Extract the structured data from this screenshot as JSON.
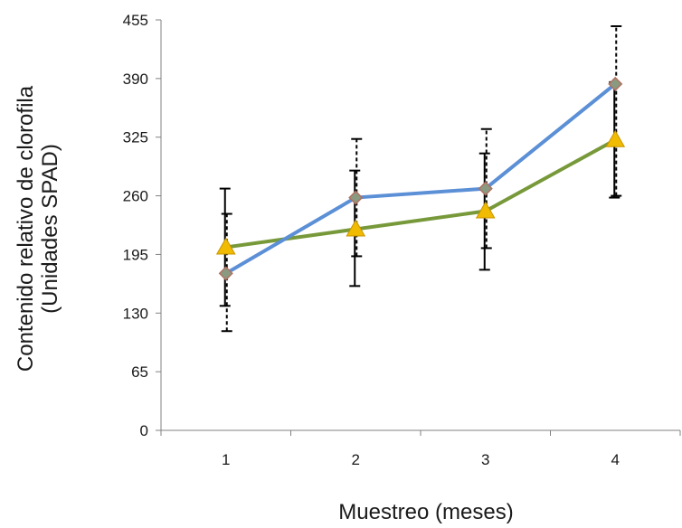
{
  "chart_data": {
    "type": "line",
    "title": "",
    "xlabel": "Muestreo (meses)",
    "ylabel": [
      "Contenido relativo de clorofila",
      "(Unidades SPAD)"
    ],
    "categories": [
      "1",
      "2",
      "3",
      "4"
    ],
    "ylim": [
      0,
      455
    ],
    "yticks": [
      0,
      65,
      130,
      195,
      260,
      325,
      390,
      455
    ],
    "grid": false,
    "legend": "none",
    "series": [
      {
        "color": "#5b8fd6",
        "marker": "diamond",
        "marker_color": "#8a9a80",
        "errorbar_style": "dashed",
        "values": [
          174,
          258,
          268,
          384
        ],
        "error_low": [
          110,
          193,
          202,
          260
        ],
        "error_high": [
          240,
          323,
          334,
          448
        ]
      },
      {
        "color": "#77993a",
        "marker": "triangle",
        "marker_color": "#f0bb00",
        "errorbar_style": "solid",
        "values": [
          203,
          223,
          243,
          322
        ],
        "error_low": [
          138,
          160,
          178,
          258
        ],
        "error_high": [
          268,
          288,
          307,
          386
        ]
      }
    ]
  }
}
